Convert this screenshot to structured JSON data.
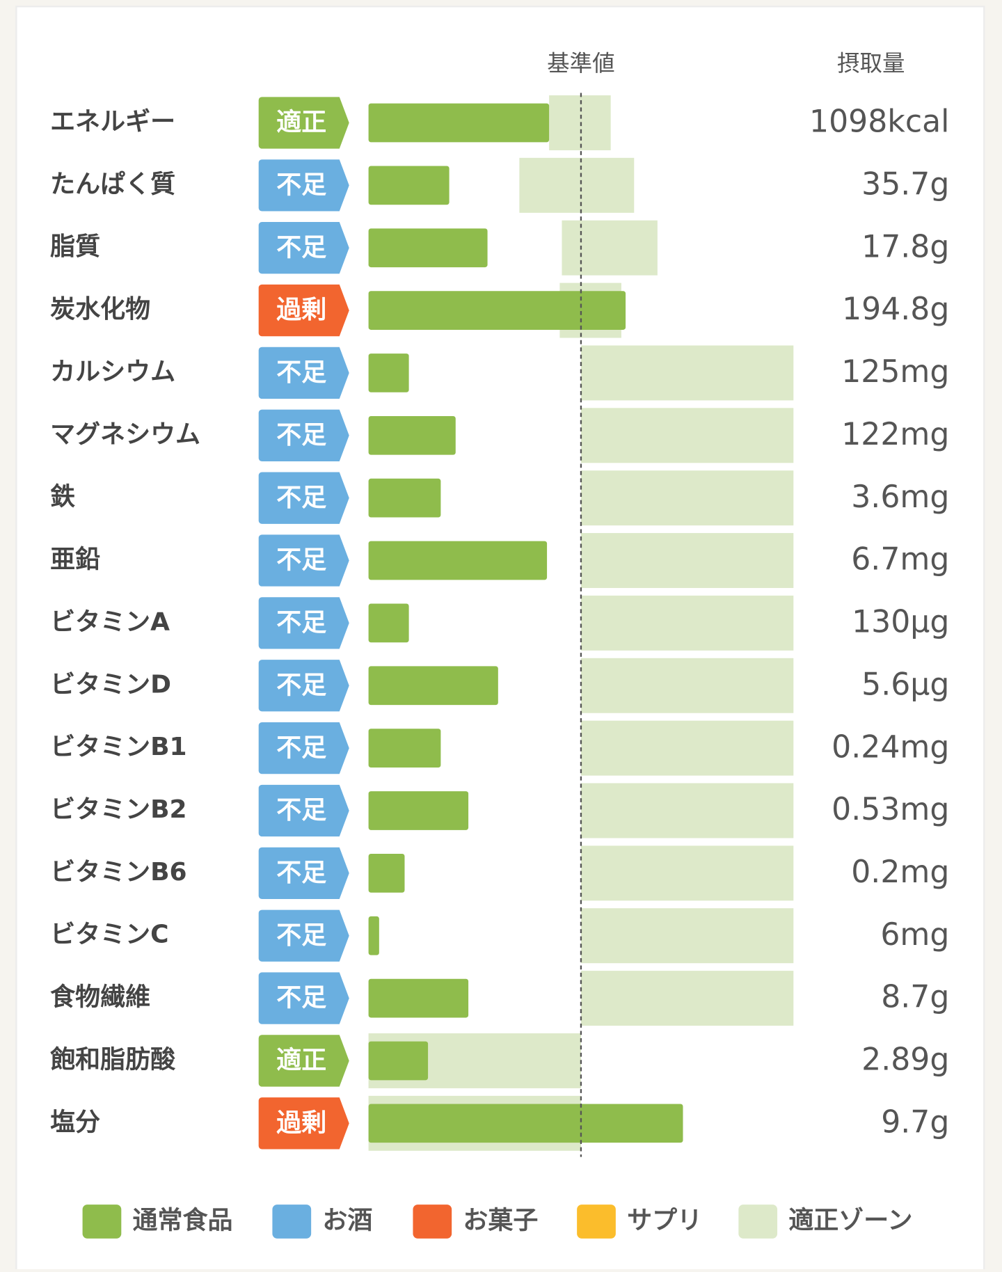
{
  "header": {
    "reference": "基準値",
    "intake": "摂取量"
  },
  "rows": [
    {
      "label": "エネルギー",
      "badge": {
        "label": "適正",
        "color": "#8fbc4c"
      },
      "percent": 85,
      "zone": [
        85,
        114
      ],
      "amount": "1098kcal"
    },
    {
      "label": "たんぱく質",
      "badge": {
        "label": "不足",
        "color": "#6aafe0"
      },
      "percent": 38,
      "zone": [
        71,
        125
      ],
      "amount": "35.7g"
    },
    {
      "label": "脂質",
      "badge": {
        "label": "不足",
        "color": "#6aafe0"
      },
      "percent": 56,
      "zone": [
        91,
        136
      ],
      "amount": "17.8g"
    },
    {
      "label": "炭水化物",
      "badge": {
        "label": "過剰",
        "color": "#f2652f"
      },
      "percent": 121,
      "zone": [
        90,
        119
      ],
      "amount": "194.8g"
    },
    {
      "label": "カルシウム",
      "badge": {
        "label": "不足",
        "color": "#6aafe0"
      },
      "percent": 19,
      "zone": [
        100,
        200
      ],
      "amount": "125mg"
    },
    {
      "label": "マグネシウム",
      "badge": {
        "label": "不足",
        "color": "#6aafe0"
      },
      "percent": 41,
      "zone": [
        100,
        200
      ],
      "amount": "122mg"
    },
    {
      "label": "鉄",
      "badge": {
        "label": "不足",
        "color": "#6aafe0"
      },
      "percent": 34,
      "zone": [
        100,
        200
      ],
      "amount": "3.6mg"
    },
    {
      "label": "亜鉛",
      "badge": {
        "label": "不足",
        "color": "#6aafe0"
      },
      "percent": 84,
      "zone": [
        100,
        200
      ],
      "amount": "6.7mg"
    },
    {
      "label": "ビタミンA",
      "badge": {
        "label": "不足",
        "color": "#6aafe0"
      },
      "percent": 19,
      "zone": [
        100,
        200
      ],
      "amount": "130μg"
    },
    {
      "label": "ビタミンD",
      "badge": {
        "label": "不足",
        "color": "#6aafe0"
      },
      "percent": 61,
      "zone": [
        100,
        200
      ],
      "amount": "5.6μg"
    },
    {
      "label": "ビタミンB1",
      "badge": {
        "label": "不足",
        "color": "#6aafe0"
      },
      "percent": 34,
      "zone": [
        100,
        200
      ],
      "amount": "0.24mg"
    },
    {
      "label": "ビタミンB2",
      "badge": {
        "label": "不足",
        "color": "#6aafe0"
      },
      "percent": 47,
      "zone": [
        100,
        200
      ],
      "amount": "0.53mg"
    },
    {
      "label": "ビタミンB6",
      "badge": {
        "label": "不足",
        "color": "#6aafe0"
      },
      "percent": 17,
      "zone": [
        100,
        200
      ],
      "amount": "0.2mg"
    },
    {
      "label": "ビタミンC",
      "badge": {
        "label": "不足",
        "color": "#6aafe0"
      },
      "percent": 5,
      "zone": [
        100,
        200
      ],
      "amount": "6mg"
    },
    {
      "label": "食物繊維",
      "badge": {
        "label": "不足",
        "color": "#6aafe0"
      },
      "percent": 47,
      "zone": [
        100,
        200
      ],
      "amount": "8.7g"
    },
    {
      "label": "飽和脂肪酸",
      "badge": {
        "label": "適正",
        "color": "#8fbc4c"
      },
      "percent": 28,
      "zone": [
        0,
        100
      ],
      "amount": "2.89g"
    },
    {
      "label": "塩分",
      "badge": {
        "label": "過剰",
        "color": "#f2652f"
      },
      "percent": 148,
      "zone": [
        0,
        100
      ],
      "amount": "9.7g"
    }
  ],
  "bar_color": "#8fbc4c",
  "zone_color": "#dde9c9",
  "legend": [
    {
      "label": "通常食品",
      "color": "#8fbc4c"
    },
    {
      "label": "お酒",
      "color": "#6aafe0"
    },
    {
      "label": "お菓子",
      "color": "#f2652f"
    },
    {
      "label": "サプリ",
      "color": "#fbbd2c"
    },
    {
      "label": "適正ゾーン",
      "color": "#dde9c9"
    }
  ]
}
